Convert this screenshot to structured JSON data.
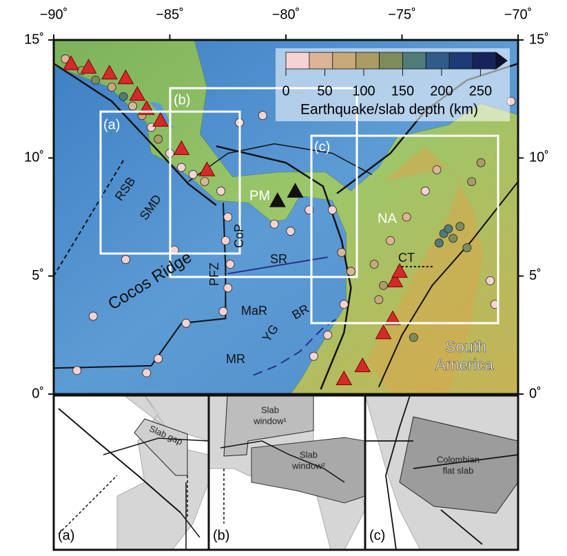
{
  "map": {
    "lon_ticks": [
      {
        "value": -90,
        "label": "−90˚"
      },
      {
        "value": -85,
        "label": "−85˚"
      },
      {
        "value": -80,
        "label": "−80˚"
      },
      {
        "value": -75,
        "label": "−75˚"
      },
      {
        "value": -70,
        "label": "−70˚"
      }
    ],
    "lat_ticks": [
      {
        "value": 15,
        "label": "15˚"
      },
      {
        "value": 10,
        "label": "10˚"
      },
      {
        "value": 5,
        "label": "5˚"
      },
      {
        "value": 0,
        "label": "0˚"
      }
    ],
    "lonlim": [
      -90,
      -70
    ],
    "latlim": [
      0,
      15
    ],
    "colorbar": {
      "title": "Earthquake/slab depth (km)",
      "ticks": [
        0,
        50,
        100,
        150,
        200,
        250
      ],
      "range": [
        0,
        270
      ],
      "colors": [
        "#f6d2d2",
        "#dcb496",
        "#c9a97a",
        "#a99c64",
        "#7d8c5b",
        "#4f7b78",
        "#2f5c88",
        "#1e3b78",
        "#16245a",
        "#0e1030"
      ]
    },
    "boxes": [
      {
        "label": "(a)"
      },
      {
        "label": "(b)"
      },
      {
        "label": "(c)"
      }
    ],
    "labels": [
      "RSB",
      "SMD",
      "Cocos Ridge",
      "PFZ",
      "CoP",
      "SR",
      "MaR",
      "YG",
      "BR",
      "MR",
      "PM",
      "NA",
      "CT",
      "South",
      "America"
    ],
    "volcanoes": [
      [
        -89.26,
        14.0
      ],
      [
        -88.5,
        13.85
      ],
      [
        -87.6,
        13.6
      ],
      [
        -86.9,
        13.4
      ],
      [
        -86.4,
        12.7
      ],
      [
        -86.0,
        12.1
      ],
      [
        -85.4,
        11.6
      ],
      [
        -84.5,
        10.4
      ],
      [
        -83.4,
        9.5
      ],
      [
        -75.3,
        4.8
      ],
      [
        -75.1,
        5.2
      ],
      [
        -75.4,
        3.2
      ],
      [
        -75.8,
        2.6
      ],
      [
        -76.7,
        1.2
      ],
      [
        -77.5,
        0.65
      ]
    ],
    "panama_volcanoes": [
      [
        -80.36,
        8.2
      ],
      [
        -79.6,
        8.6
      ]
    ],
    "quakes": [
      [
        -89.5,
        14.2,
        40
      ],
      [
        -88.8,
        13.7,
        90
      ],
      [
        -88.2,
        13.3,
        120
      ],
      [
        -87.5,
        13.0,
        60
      ],
      [
        -87.0,
        12.6,
        150
      ],
      [
        -86.6,
        12.2,
        30
      ],
      [
        -86.2,
        11.8,
        80
      ],
      [
        -85.8,
        11.3,
        10
      ],
      [
        -85.5,
        10.8,
        110
      ],
      [
        -85.0,
        10.2,
        20
      ],
      [
        -84.5,
        9.6,
        15
      ],
      [
        -84.0,
        9.3,
        10
      ],
      [
        -83.5,
        9.0,
        40
      ],
      [
        -82.8,
        8.6,
        10
      ],
      [
        -82.5,
        7.5,
        10
      ],
      [
        -82.6,
        6.5,
        10
      ],
      [
        -82.4,
        5.5,
        10
      ],
      [
        -82.5,
        4.5,
        10
      ],
      [
        -82.7,
        3.5,
        10
      ],
      [
        -84.3,
        3.0,
        10
      ],
      [
        -85.5,
        1.5,
        10
      ],
      [
        -86.0,
        0.9,
        10
      ],
      [
        -84.8,
        6.1,
        10
      ],
      [
        -80.5,
        7.2,
        10
      ],
      [
        -79.8,
        6.9,
        10
      ],
      [
        -79.0,
        7.8,
        15
      ],
      [
        -78.0,
        7.8,
        20
      ],
      [
        -77.6,
        6.0,
        30
      ],
      [
        -77.2,
        5.2,
        50
      ],
      [
        -77.5,
        3.8,
        20
      ],
      [
        -78.2,
        2.5,
        10
      ],
      [
        -78.8,
        1.6,
        10
      ],
      [
        -76.0,
        4.0,
        80
      ],
      [
        -75.8,
        4.6,
        100
      ],
      [
        -76.2,
        5.5,
        60
      ],
      [
        -75.5,
        6.5,
        40
      ],
      [
        -74.8,
        7.5,
        30
      ],
      [
        -74.0,
        8.6,
        20
      ],
      [
        -73.5,
        9.5,
        50
      ],
      [
        -73.2,
        6.8,
        160
      ],
      [
        -73.0,
        7.0,
        150
      ],
      [
        -72.8,
        6.6,
        140
      ],
      [
        -73.4,
        6.4,
        170
      ],
      [
        -72.5,
        7.1,
        130
      ],
      [
        -72.2,
        6.2,
        120
      ],
      [
        -71.2,
        4.8,
        10
      ],
      [
        -71.0,
        3.8,
        10
      ],
      [
        -71.6,
        9.8,
        110
      ],
      [
        -72.0,
        9.0,
        90
      ],
      [
        -74.5,
        2.4,
        120
      ],
      [
        -70.3,
        12.4,
        10
      ],
      [
        -89.0,
        1.0,
        10
      ],
      [
        -88.3,
        3.3,
        10
      ],
      [
        -86.9,
        5.7,
        10
      ],
      [
        -82.0,
        11.5,
        10
      ],
      [
        -81.0,
        11.8,
        10
      ]
    ],
    "insets": [
      {
        "panel": "(a)",
        "labels": [
          "Slab gap"
        ]
      },
      {
        "panel": "(b)",
        "labels": [
          "Slab",
          "window¹",
          "Slab",
          "window²"
        ]
      },
      {
        "panel": "(c)",
        "labels": [
          "Colombian",
          "flat slab"
        ]
      }
    ]
  }
}
